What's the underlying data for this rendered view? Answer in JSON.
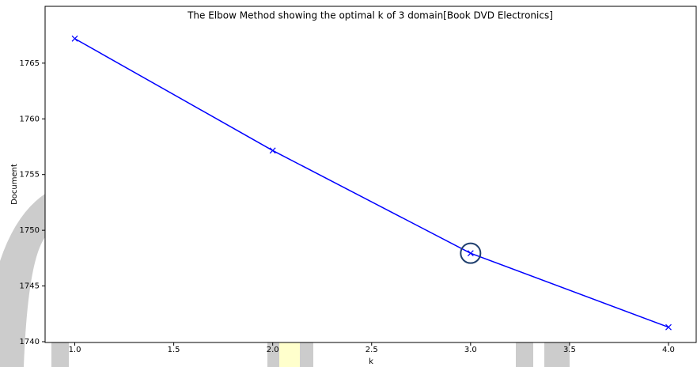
{
  "chart_data": {
    "type": "line",
    "title": "The Elbow Method showing the optimal k of 3 domain[Book DVD Electronics]",
    "x_label": "k",
    "y_label": "Document",
    "x": [
      1,
      2,
      3,
      4
    ],
    "series": [
      {
        "name": "Document",
        "color": "#0000ff",
        "values": [
          1767.2,
          1757.16,
          1747.94,
          1741.3
        ]
      }
    ],
    "xlim": [
      0.85,
      4.14
    ],
    "xticks": [
      {
        "value": 1,
        "label": "1.0"
      },
      {
        "value": 1.5,
        "label": "1.5"
      },
      {
        "value": 2,
        "label": "2.0"
      },
      {
        "value": 2.5,
        "label": "2.5"
      },
      {
        "value": 3,
        "label": "3.0"
      },
      {
        "value": 3.5,
        "label": "3.5"
      },
      {
        "value": 4,
        "label": "4.0"
      }
    ],
    "ylim": [
      1739.93,
      1770.1
    ],
    "yticks": [
      1740,
      1745,
      1750,
      1755,
      1760,
      1765
    ],
    "marker": "x",
    "highlight_x": 3
  }
}
